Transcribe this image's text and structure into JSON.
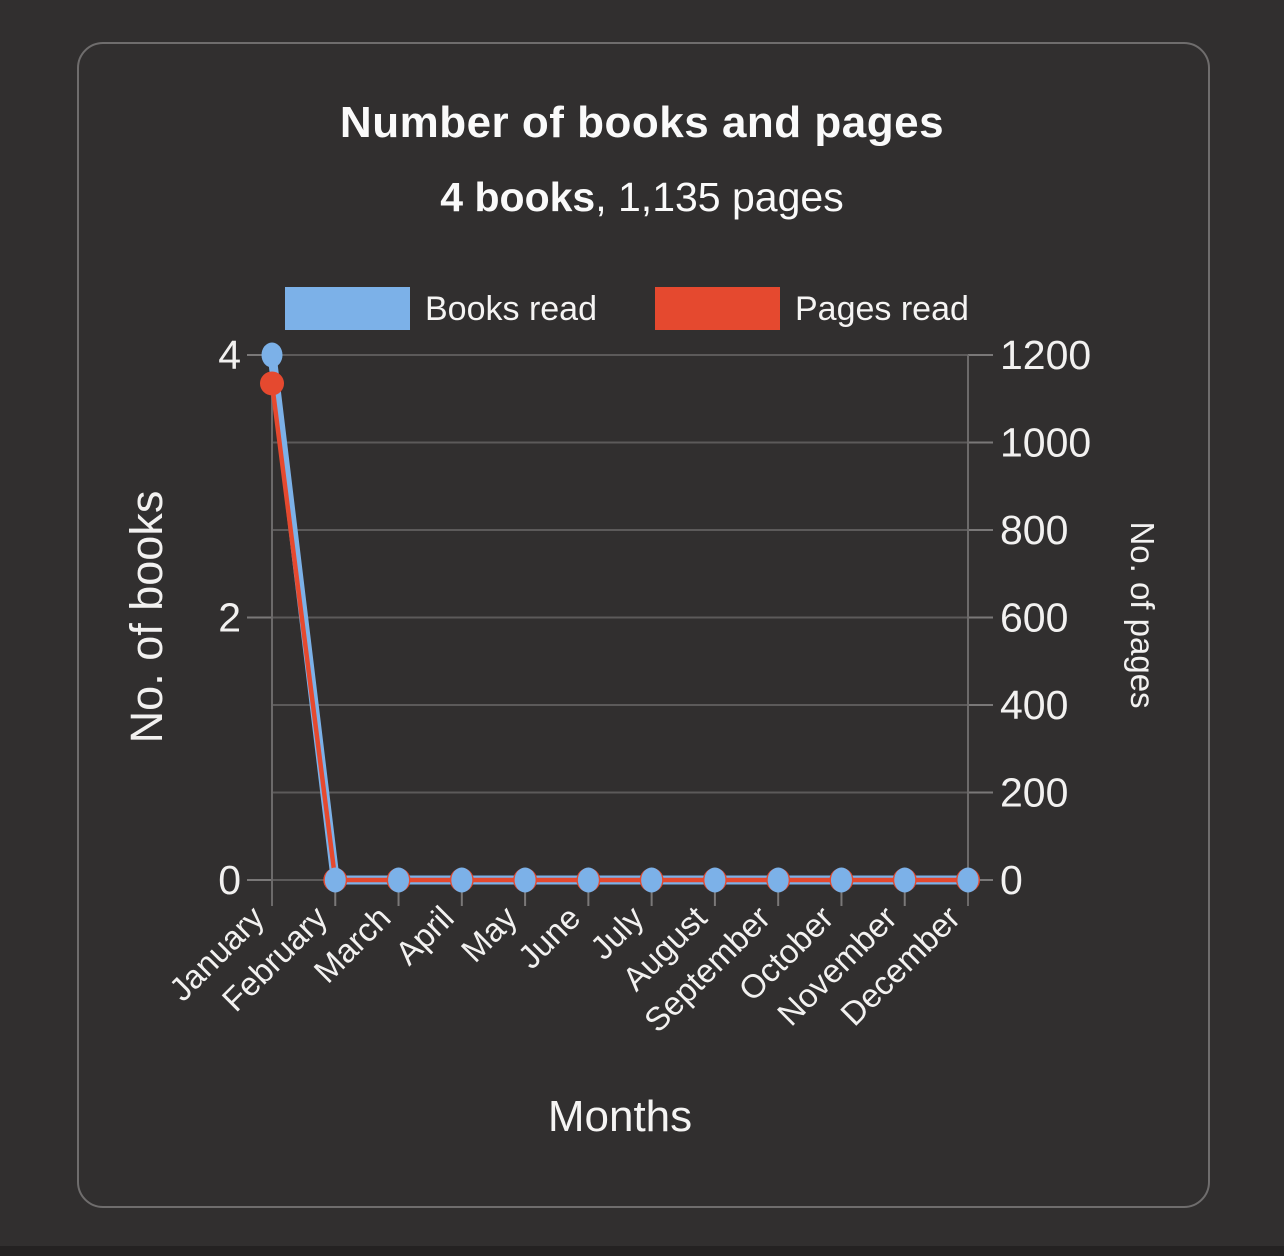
{
  "chart_data": {
    "type": "line",
    "title": "Number of books and pages",
    "subtitle": {
      "bold": "4 books",
      "rest": ", 1,135 pages"
    },
    "categories": [
      "January",
      "February",
      "March",
      "April",
      "May",
      "June",
      "July",
      "August",
      "September",
      "October",
      "November",
      "December"
    ],
    "series": [
      {
        "name": "Books read",
        "color": "#7cb1e8",
        "axis": "left",
        "values": [
          4,
          0,
          0,
          0,
          0,
          0,
          0,
          0,
          0,
          0,
          0,
          0
        ]
      },
      {
        "name": "Pages read",
        "color": "#e5492f",
        "axis": "right",
        "values": [
          1135,
          0,
          0,
          0,
          0,
          0,
          0,
          0,
          0,
          0,
          0,
          0
        ]
      }
    ],
    "x_axis": {
      "title": "Months"
    },
    "left_axis": {
      "title": "No. of books",
      "range": [
        0,
        4
      ],
      "ticks": [
        0,
        2,
        4
      ]
    },
    "right_axis": {
      "title": "No. of pages",
      "range": [
        0,
        1200
      ],
      "ticks": [
        0,
        200,
        400,
        600,
        800,
        1000,
        1200
      ]
    },
    "grid": true,
    "legend_position": "top"
  },
  "colors": {
    "background": "#312f2f",
    "card_border": "#6f6d6d",
    "grid_line": "#5c5a5a",
    "axis_line": "#6c6a6a",
    "tick_mark": "#7a7878",
    "text": "#f2f1f0",
    "bottom_bar": "#242222"
  }
}
